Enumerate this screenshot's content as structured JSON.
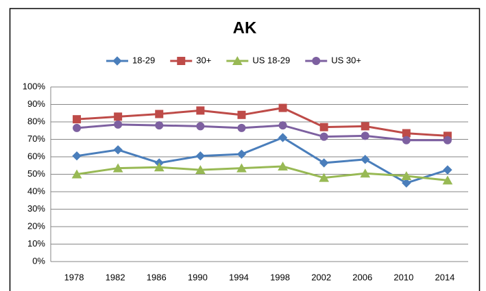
{
  "chart_data": {
    "type": "line",
    "title": "AK",
    "categories": [
      "1978",
      "1982",
      "1986",
      "1990",
      "1994",
      "1998",
      "2002",
      "2006",
      "2010",
      "2014"
    ],
    "series": [
      {
        "name": "18-29",
        "color": "#4a7ebb",
        "marker": "diamond",
        "values": [
          60.5,
          64,
          56.5,
          60.5,
          61.5,
          71,
          56.5,
          58.5,
          45,
          52.5
        ]
      },
      {
        "name": "30+",
        "color": "#be4b48",
        "marker": "square",
        "values": [
          81.5,
          83,
          84.5,
          86.5,
          84,
          88,
          77,
          77.5,
          73.5,
          72
        ]
      },
      {
        "name": "US 18-29",
        "color": "#98b954",
        "marker": "triangle",
        "values": [
          50,
          53.5,
          54,
          52.5,
          53.5,
          54.5,
          48,
          50.5,
          49,
          46.5
        ]
      },
      {
        "name": "US 30+",
        "color": "#7d60a0",
        "marker": "circle",
        "values": [
          76.5,
          78.5,
          78,
          77.5,
          76.5,
          78,
          71.5,
          72,
          69.5,
          69.5
        ]
      }
    ],
    "ylim": [
      0,
      100
    ],
    "yticks": [
      {
        "value": 0,
        "label": "0%"
      },
      {
        "value": 10,
        "label": "10%"
      },
      {
        "value": 20,
        "label": "20%"
      },
      {
        "value": 30,
        "label": "30%"
      },
      {
        "value": 40,
        "label": "40%"
      },
      {
        "value": 50,
        "label": "50%"
      },
      {
        "value": 60,
        "label": "60%"
      },
      {
        "value": 70,
        "label": "70%"
      },
      {
        "value": 80,
        "label": "80%"
      },
      {
        "value": 90,
        "label": "90%"
      },
      {
        "value": 100,
        "label": "100%"
      }
    ],
    "grid": true,
    "legend": "top"
  }
}
